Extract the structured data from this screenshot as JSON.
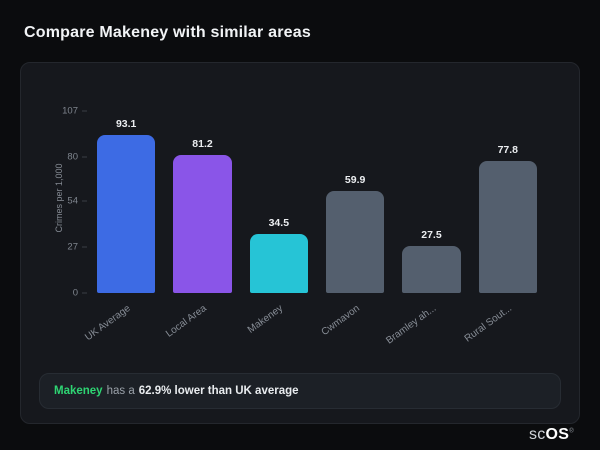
{
  "page": {
    "title": "Compare Makeney with similar areas"
  },
  "chart_data": {
    "type": "bar",
    "ylabel": "Crimes per 1,000",
    "ylim": [
      0,
      107
    ],
    "yticks": [
      0,
      27,
      54,
      80,
      107
    ],
    "categories": [
      "UK Average",
      "Local Area",
      "Makeney",
      "Cwmavon",
      "Bramley ah...",
      "Rural Sout..."
    ],
    "values": [
      93.1,
      81.2,
      34.5,
      59.9,
      27.5,
      77.8
    ],
    "bar_colors": [
      "#3d6be4",
      "#8a55e8",
      "#26c4d6",
      "#545f6e",
      "#545f6e",
      "#545f6e"
    ],
    "grid": false,
    "legend": false
  },
  "banner": {
    "area": "Makeney",
    "mid": "has a",
    "stat": "62.9% lower than UK average"
  },
  "logo": {
    "prefix": "sc",
    "suffix": "OS",
    "reg": "®"
  }
}
